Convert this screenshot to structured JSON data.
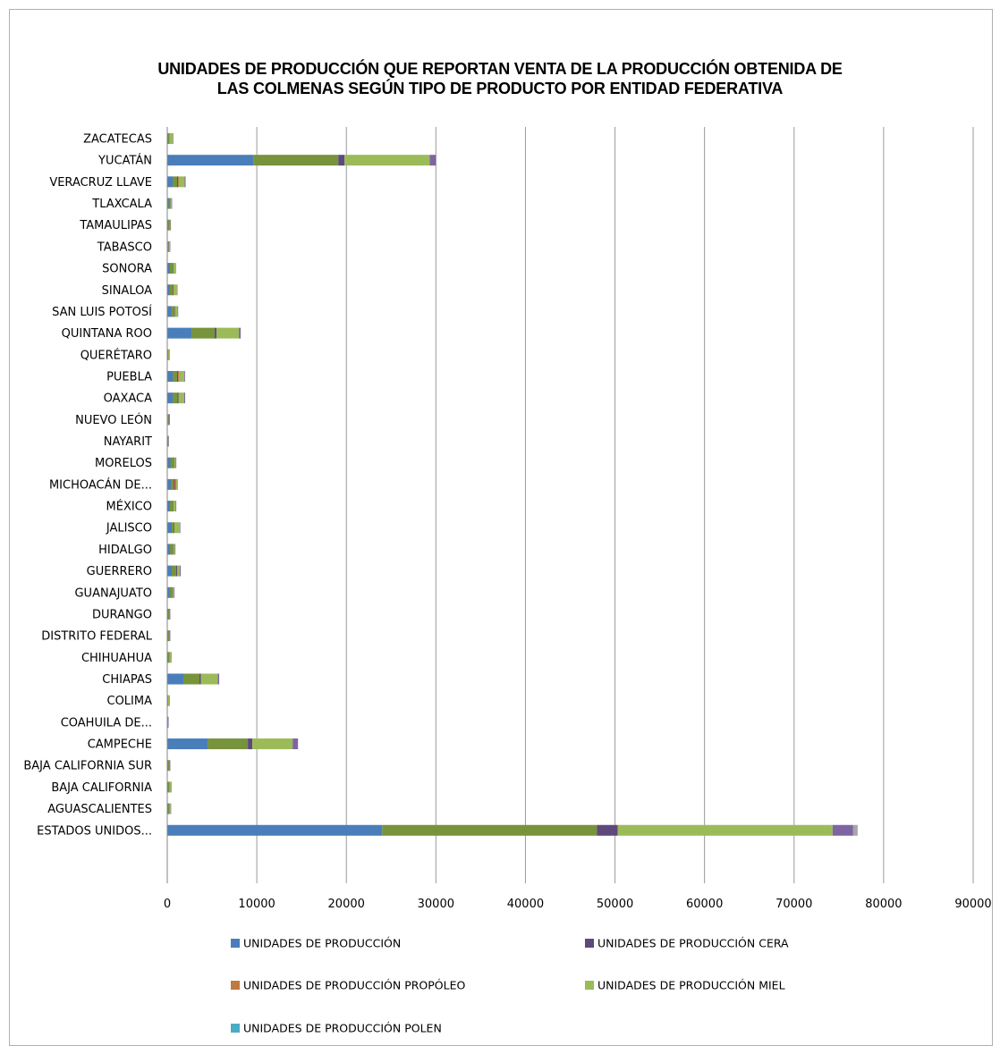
{
  "chart_data": {
    "type": "bar",
    "orientation": "horizontal",
    "stacked": true,
    "title": "UNIDADES DE PRODUCCIÓN QUE REPORTAN VENTA DE LA PRODUCCIÓN OBTENIDA DE LAS COLMENAS SEGÚN TIPO DE PRODUCTO POR ENTIDAD FEDERATIVA",
    "title_lines": [
      "UNIDADES DE PRODUCCIÓN QUE REPORTAN VENTA DE LA PRODUCCIÓN OBTENIDA DE",
      "LAS COLMENAS SEGÚN TIPO DE PRODUCTO POR ENTIDAD FEDERATIVA"
    ],
    "xlim": [
      0,
      90000
    ],
    "xticks": [
      0,
      10000,
      20000,
      30000,
      40000,
      50000,
      60000,
      70000,
      80000,
      90000
    ],
    "grid": "vertical",
    "legend_position": "bottom",
    "categories": [
      "ZACATECAS",
      "YUCATÁN",
      "VERACRUZ LLAVE",
      "TLAXCALA",
      "TAMAULIPAS",
      "TABASCO",
      "SONORA",
      "SINALOA",
      "SAN LUIS POTOSÍ",
      "QUINTANA ROO",
      "QUERÉTARO",
      "PUEBLA",
      "OAXACA",
      "NUEVO LEÓN",
      "NAYARIT",
      "MORELOS",
      "MICHOACÁN DE...",
      "MÉXICO",
      "JALISCO",
      "HIDALGO",
      "GUERRERO",
      "GUANAJUATO",
      "DURANGO",
      "DISTRITO FEDERAL",
      "CHIHUAHUA",
      "CHIAPAS",
      "COLIMA",
      "COAHUILA DE...",
      "CAMPECHE",
      "BAJA CALIFORNIA SUR",
      "BAJA CALIFORNIA",
      "AGUASCALIENTES",
      "ESTADOS UNIDOS..."
    ],
    "segments": [
      {
        "color": "#4A7EBB",
        "values": [
          100,
          9600,
          600,
          150,
          100,
          80,
          300,
          300,
          400,
          2700,
          50,
          600,
          600,
          80,
          40,
          350,
          400,
          300,
          500,
          300,
          500,
          250,
          100,
          100,
          100,
          1800,
          30,
          30,
          4500,
          100,
          100,
          100,
          24000
        ]
      },
      {
        "color": "#77933C",
        "values": [
          100,
          9500,
          500,
          150,
          100,
          80,
          300,
          300,
          400,
          2600,
          50,
          500,
          550,
          80,
          40,
          350,
          350,
          300,
          250,
          300,
          500,
          250,
          100,
          100,
          100,
          1800,
          30,
          30,
          4500,
          100,
          100,
          100,
          24000
        ]
      },
      {
        "color": "#5F497A",
        "values": [
          20,
          700,
          100,
          30,
          30,
          20,
          50,
          50,
          60,
          200,
          10,
          100,
          100,
          30,
          10,
          50,
          50,
          50,
          50,
          50,
          100,
          50,
          30,
          30,
          20,
          150,
          10,
          10,
          500,
          30,
          20,
          20,
          2300
        ]
      },
      {
        "color": "#C0504D",
        "values": [
          0,
          0,
          50,
          0,
          0,
          0,
          0,
          30,
          0,
          0,
          0,
          80,
          0,
          0,
          0,
          0,
          150,
          0,
          0,
          0,
          0,
          0,
          0,
          0,
          0,
          0,
          0,
          0,
          0,
          0,
          0,
          0,
          0
        ]
      },
      {
        "color": "#9BBB59",
        "values": [
          400,
          9500,
          700,
          150,
          120,
          100,
          250,
          400,
          300,
          2500,
          100,
          600,
          650,
          50,
          30,
          200,
          150,
          300,
          600,
          200,
          300,
          200,
          50,
          50,
          200,
          1900,
          150,
          20,
          4500,
          50,
          200,
          150,
          24000
        ]
      },
      {
        "color": "#8064A2",
        "values": [
          20,
          700,
          100,
          30,
          30,
          20,
          50,
          50,
          60,
          200,
          20,
          100,
          100,
          30,
          10,
          50,
          50,
          50,
          50,
          50,
          100,
          50,
          30,
          30,
          20,
          150,
          10,
          10,
          600,
          30,
          20,
          20,
          2300
        ]
      },
      {
        "color": "#A6A6A6",
        "values": [
          0,
          0,
          0,
          0,
          0,
          0,
          0,
          0,
          0,
          0,
          0,
          0,
          0,
          0,
          0,
          0,
          0,
          0,
          0,
          0,
          0,
          0,
          0,
          0,
          0,
          0,
          0,
          0,
          0,
          0,
          0,
          0,
          500
        ]
      }
    ],
    "legend": [
      {
        "label": "UNIDADES DE PRODUCCIÓN",
        "color": "#4A7EBB"
      },
      {
        "label": "UNIDADES DE PRODUCCIÓN CERA",
        "color": "#5F497A"
      },
      {
        "label": "UNIDADES DE PRODUCCIÓN PROPÓLEO",
        "color": "#C0793F"
      },
      {
        "label": "UNIDADES DE PRODUCCIÓN MIEL",
        "color": "#9BBB59"
      },
      {
        "label": "UNIDADES DE PRODUCCIÓN POLEN",
        "color": "#4BACC6"
      }
    ]
  }
}
